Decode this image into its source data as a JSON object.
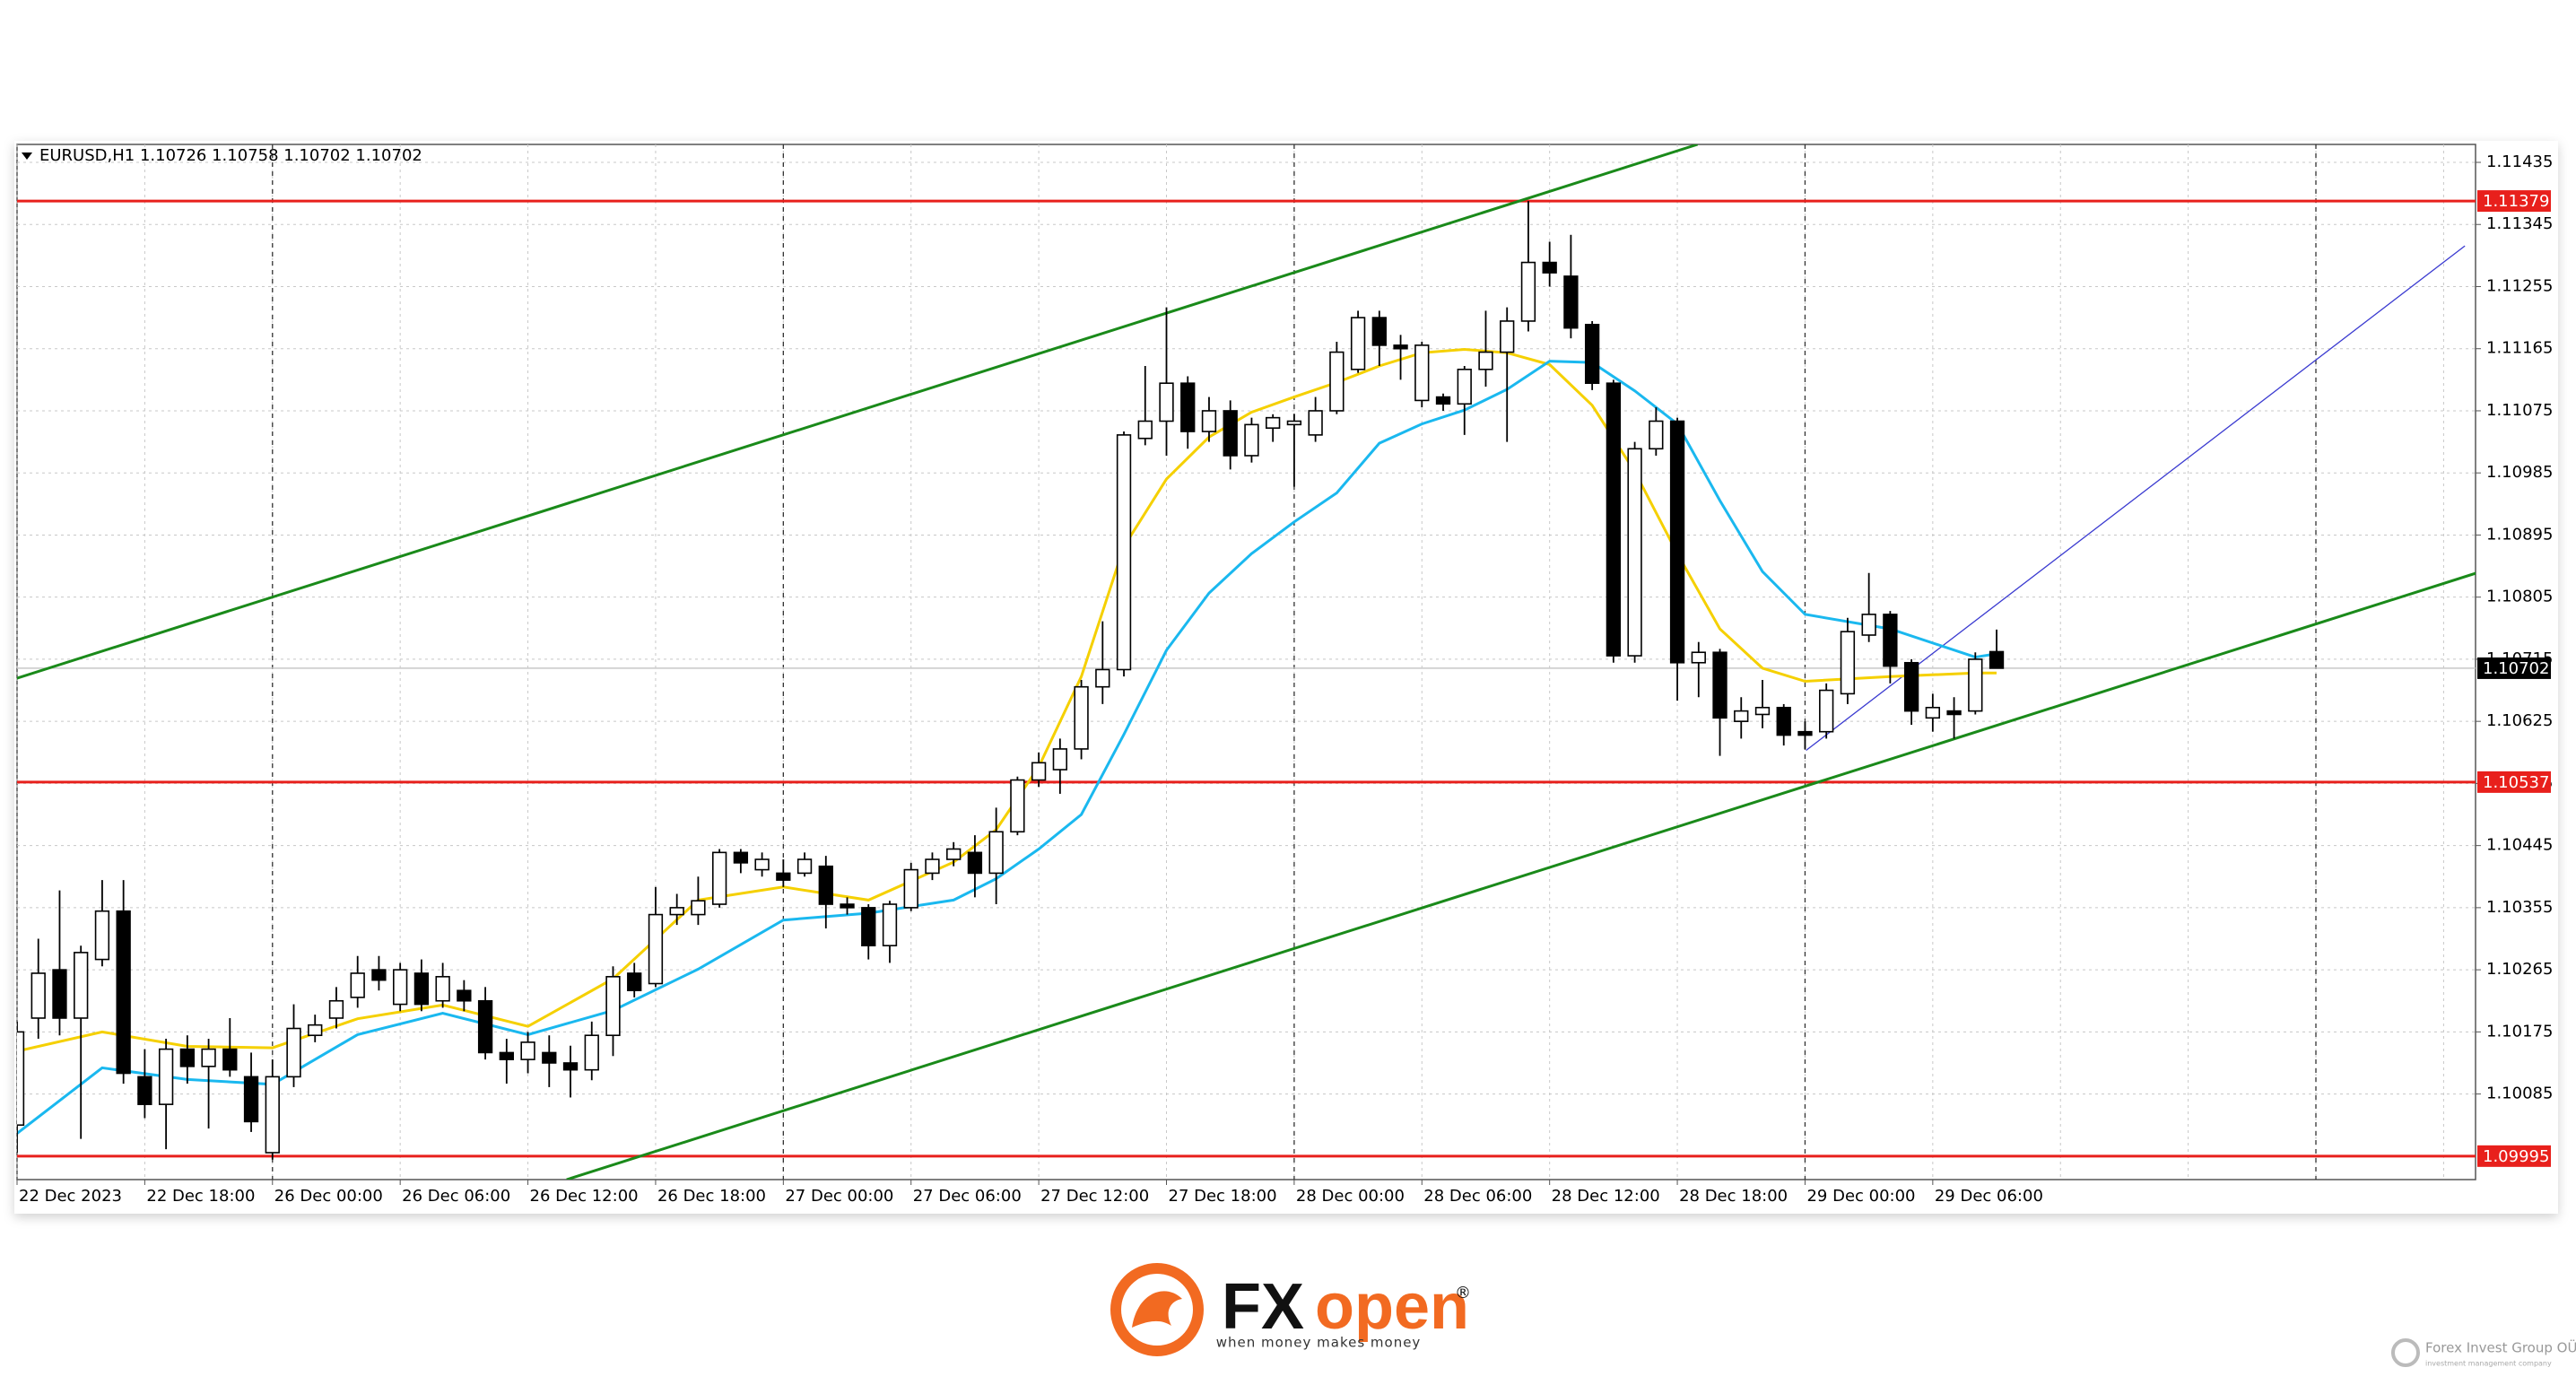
{
  "chart_data": {
    "type": "candlestick",
    "title": "EURUSD,H1  1.10726 1.10758 1.10702 1.10702",
    "categories": [
      "22 Dec 2023",
      null,
      null,
      null,
      null,
      null,
      "22 Dec 18:00",
      null,
      null,
      null,
      null,
      null,
      "26 Dec 00:00",
      null,
      null,
      null,
      null,
      null,
      "26 Dec 06:00",
      null,
      null,
      null,
      null,
      null,
      "26 Dec 12:00",
      null,
      null,
      null,
      null,
      null,
      "26 Dec 18:00",
      null,
      null,
      null,
      null,
      null,
      "27 Dec 00:00",
      null,
      null,
      null,
      null,
      null,
      "27 Dec 06:00",
      null,
      null,
      null,
      null,
      null,
      "27 Dec 12:00",
      null,
      null,
      null,
      null,
      null,
      "27 Dec 18:00",
      null,
      null,
      null,
      null,
      null,
      "28 Dec 00:00",
      null,
      null,
      null,
      null,
      null,
      "28 Dec 06:00",
      null,
      null,
      null,
      null,
      null,
      "28 Dec 12:00",
      null,
      null,
      null,
      null,
      null,
      "28 Dec 18:00",
      null,
      null,
      null,
      null,
      null,
      "29 Dec 00:00",
      null,
      null,
      null,
      null,
      null,
      "29 Dec 06:00",
      null,
      null,
      null
    ],
    "open": [
      1.1004,
      1.10195,
      1.10265,
      1.10195,
      1.1028,
      1.1035,
      1.1011,
      1.1007,
      1.1015,
      1.10125,
      1.1015,
      1.1011,
      1.1,
      1.1011,
      1.1017,
      1.10195,
      1.10225,
      1.10265,
      1.10215,
      1.1026,
      1.1022,
      1.10235,
      1.1022,
      1.10145,
      1.10135,
      1.10145,
      1.1013,
      1.1012,
      1.1017,
      1.1026,
      1.10245,
      1.10345,
      1.10345,
      1.1036,
      1.10435,
      1.1041,
      1.10405,
      1.10405,
      1.10415,
      1.1036,
      1.10355,
      1.103,
      1.10355,
      1.10405,
      1.10425,
      1.10435,
      1.10405,
      1.10465,
      1.1054,
      1.10555,
      1.10585,
      1.10675,
      1.107,
      1.11035,
      1.1106,
      1.11115,
      1.11045,
      1.11075,
      1.1101,
      1.1105,
      1.11055,
      1.1104,
      1.11075,
      1.11135,
      1.1121,
      1.1117,
      1.1109,
      1.11095,
      1.11085,
      1.11135,
      1.1116,
      1.11205,
      1.1129,
      1.1127,
      1.112,
      1.11115,
      1.1072,
      1.1102,
      1.1106,
      1.1071,
      1.10725,
      1.10625,
      1.10635,
      1.10645,
      1.1061,
      1.1061,
      1.10665,
      1.1075,
      1.1078,
      1.1071,
      1.1063,
      1.1064,
      1.1064,
      1.10726
    ],
    "high": [
      1.1019,
      1.1031,
      1.1038,
      1.103,
      1.10395,
      1.10395,
      1.1015,
      1.10165,
      1.1017,
      1.10165,
      1.10195,
      1.10145,
      1.10135,
      1.10215,
      1.102,
      1.1024,
      1.10285,
      1.10285,
      1.10275,
      1.1028,
      1.10275,
      1.1025,
      1.1024,
      1.10165,
      1.10175,
      1.1017,
      1.10155,
      1.1019,
      1.1027,
      1.10275,
      1.10385,
      1.10375,
      1.104,
      1.1044,
      1.1044,
      1.10435,
      1.10425,
      1.10435,
      1.1043,
      1.1037,
      1.1036,
      1.10365,
      1.1042,
      1.10435,
      1.1045,
      1.1046,
      1.105,
      1.10545,
      1.1058,
      1.106,
      1.10685,
      1.1077,
      1.11045,
      1.1114,
      1.11225,
      1.11125,
      1.11095,
      1.1109,
      1.11065,
      1.1107,
      1.1107,
      1.11095,
      1.11175,
      1.1122,
      1.1122,
      1.11185,
      1.11175,
      1.111,
      1.1114,
      1.1122,
      1.11225,
      1.11379,
      1.1132,
      1.1133,
      1.11205,
      1.1112,
      1.1103,
      1.1108,
      1.11065,
      1.1074,
      1.1073,
      1.1066,
      1.10685,
      1.1065,
      1.10625,
      1.1068,
      1.10775,
      1.1084,
      1.10785,
      1.10715,
      1.10665,
      1.1066,
      1.10725,
      1.10758
    ],
    "low": [
      1.1,
      1.10165,
      1.1017,
      1.1002,
      1.1027,
      1.101,
      1.1005,
      1.10005,
      1.101,
      1.10035,
      1.1011,
      1.1003,
      1.0999,
      1.10095,
      1.1016,
      1.1018,
      1.1021,
      1.10235,
      1.10205,
      1.10205,
      1.1021,
      1.10205,
      1.10135,
      1.101,
      1.10115,
      1.10095,
      1.1008,
      1.10105,
      1.1014,
      1.10225,
      1.1024,
      1.1033,
      1.1033,
      1.10355,
      1.10405,
      1.104,
      1.10385,
      1.104,
      1.10325,
      1.10345,
      1.1028,
      1.10275,
      1.1035,
      1.10395,
      1.10415,
      1.1037,
      1.1036,
      1.1046,
      1.1053,
      1.1052,
      1.1057,
      1.1065,
      1.1069,
      1.11025,
      1.1101,
      1.1102,
      1.1103,
      1.1099,
      1.11,
      1.1103,
      1.10965,
      1.1103,
      1.1107,
      1.1113,
      1.1114,
      1.1112,
      1.1108,
      1.11075,
      1.1104,
      1.1111,
      1.1103,
      1.1119,
      1.11255,
      1.1118,
      1.11105,
      1.1071,
      1.1071,
      1.1101,
      1.10655,
      1.1066,
      1.10575,
      1.106,
      1.10615,
      1.1059,
      1.10585,
      1.106,
      1.1065,
      1.1074,
      1.1068,
      1.1062,
      1.1061,
      1.106,
      1.10635,
      1.10702
    ],
    "close": [
      1.10175,
      1.1026,
      1.10195,
      1.1029,
      1.1035,
      1.10115,
      1.1007,
      1.1015,
      1.10125,
      1.1015,
      1.1012,
      1.10045,
      1.1011,
      1.1018,
      1.10185,
      1.1022,
      1.1026,
      1.1025,
      1.10265,
      1.10215,
      1.10255,
      1.1022,
      1.10145,
      1.10135,
      1.1016,
      1.1013,
      1.1012,
      1.1017,
      1.10255,
      1.10235,
      1.10345,
      1.10355,
      1.10365,
      1.10435,
      1.1042,
      1.10425,
      1.10395,
      1.10425,
      1.1036,
      1.10355,
      1.103,
      1.1036,
      1.1041,
      1.10425,
      1.1044,
      1.10405,
      1.10465,
      1.1054,
      1.10565,
      1.10585,
      1.10675,
      1.107,
      1.1104,
      1.1106,
      1.11115,
      1.11045,
      1.11075,
      1.1101,
      1.11055,
      1.11065,
      1.1106,
      1.11075,
      1.1116,
      1.1121,
      1.1117,
      1.11165,
      1.1117,
      1.11085,
      1.11135,
      1.1116,
      1.11205,
      1.1129,
      1.11275,
      1.11195,
      1.11115,
      1.1072,
      1.1102,
      1.1106,
      1.1071,
      1.10725,
      1.1063,
      1.1064,
      1.10645,
      1.10605,
      1.10605,
      1.1067,
      1.10755,
      1.1078,
      1.10705,
      1.1064,
      1.10645,
      1.10635,
      1.10715,
      1.10702
    ],
    "bull_color": "#ffffff",
    "bear_color": "#000000",
    "series": [
      {
        "color": "#f5d000",
        "x": [
          0,
          4,
          8,
          12,
          16,
          20,
          24,
          28,
          32,
          36,
          40,
          44,
          46,
          48,
          50,
          52,
          54,
          56,
          58,
          60,
          62,
          64,
          66,
          68,
          70,
          72,
          74,
          76,
          78,
          80,
          82,
          84,
          88,
          92,
          93
        ],
        "values": [
          1.10147,
          1.10175,
          1.10154,
          1.10152,
          1.10194,
          1.10214,
          1.10183,
          1.10252,
          1.10366,
          1.10385,
          1.10366,
          1.10421,
          1.10468,
          1.10559,
          1.1069,
          1.10878,
          1.10976,
          1.11037,
          1.11073,
          1.11095,
          1.11116,
          1.1114,
          1.11159,
          1.11164,
          1.11159,
          1.11142,
          1.11083,
          1.10987,
          1.10868,
          1.10759,
          1.10702,
          1.10683,
          1.1069,
          1.10695,
          1.10695
        ]
      },
      {
        "color": "#1ab8ef",
        "x": [
          0,
          4,
          8,
          12,
          16,
          20,
          24,
          28,
          32,
          36,
          40,
          44,
          46,
          48,
          50,
          52,
          54,
          56,
          58,
          60,
          62,
          64,
          66,
          68,
          70,
          72,
          74,
          76,
          78,
          80,
          82,
          84,
          88,
          92,
          93
        ],
        "values": [
          1.10028,
          1.10123,
          1.10106,
          1.10099,
          1.10171,
          1.10202,
          1.10171,
          1.10206,
          1.10266,
          1.10337,
          1.10347,
          1.10366,
          1.10397,
          1.1044,
          1.1049,
          1.10606,
          1.10728,
          1.10811,
          1.10868,
          1.10914,
          1.10956,
          1.11028,
          1.11056,
          1.11076,
          1.11106,
          1.11147,
          1.11145,
          1.11104,
          1.11056,
          1.10945,
          1.10842,
          1.1078,
          1.10759,
          1.10718,
          1.10723
        ]
      }
    ],
    "trendlines": [
      {
        "color": "#1a8a1a",
        "points": [
          [
            -0.05,
            1.10687
          ],
          [
            78.95,
            1.11461
          ]
        ]
      },
      {
        "color": "#1a8a1a",
        "points": [
          [
            25.82,
            1.09961
          ],
          [
            115.55,
            1.1084
          ]
        ]
      },
      {
        "color": "#3a3ad0",
        "points": [
          [
            84.05,
            1.10583
          ],
          [
            115.0,
            1.11314
          ]
        ]
      }
    ],
    "hlines": [
      {
        "value": 1.11379,
        "color": "#e8201c"
      },
      {
        "value": 1.10537,
        "color": "#e8201c"
      },
      {
        "value": 1.09995,
        "color": "#e8201c"
      }
    ],
    "last_price": {
      "value": 1.10702,
      "color": "#c8c8c8"
    },
    "xlim": [
      0,
      115.5
    ],
    "ylim": [
      1.09961,
      1.11461
    ],
    "yticks": [
      1.11435,
      1.11345,
      1.11255,
      1.11165,
      1.11075,
      1.10985,
      1.10895,
      1.10805,
      1.10715,
      1.10625,
      1.10535,
      1.10445,
      1.10355,
      1.10265,
      1.10175,
      1.10085
    ],
    "grid": true
  },
  "brand": {
    "logo_fx": "FX",
    "logo_open": "open",
    "registered": "®",
    "slogan": "when money makes money",
    "watermark": "Forex Invest Group OÜ",
    "watermark_sub": "investment management company"
  }
}
